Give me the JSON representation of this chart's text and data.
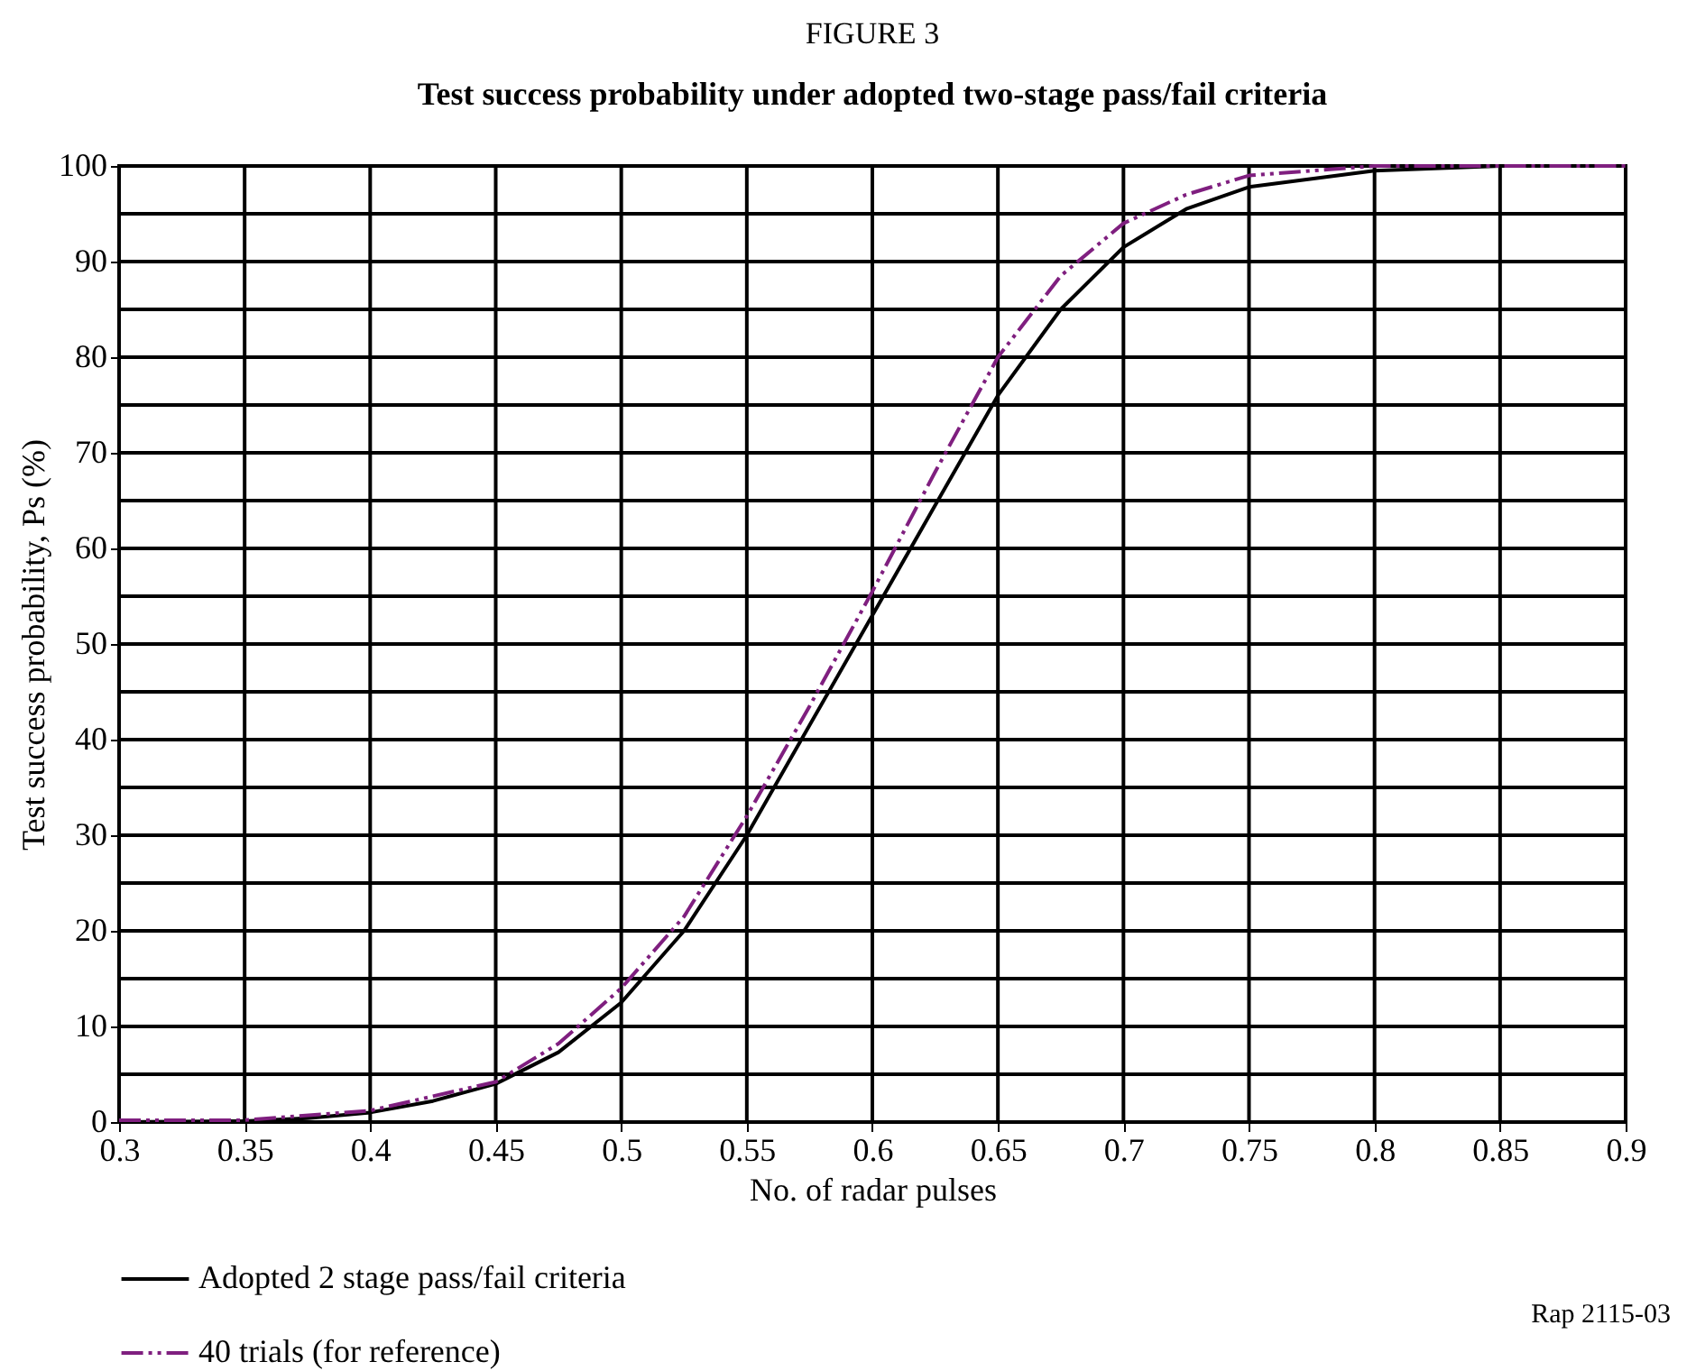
{
  "chart_data": {
    "type": "line",
    "title": "FIGURE 3",
    "subtitle": "Test success probability under adopted two-stage pass/fail criteria",
    "xlabel": "No. of radar pulses",
    "ylabel": "Test success probability, Ps (%)",
    "annotations": [
      "Rap 2115-03"
    ],
    "xlim": [
      0.3,
      0.9
    ],
    "xticks": [
      0.3,
      0.35,
      0.4,
      0.45,
      0.5,
      0.55,
      0.6,
      0.65,
      0.7,
      0.75,
      0.8,
      0.85,
      0.9
    ],
    "ylim": [
      0,
      100
    ],
    "yticks": [
      0,
      {
        "value": 5,
        "label": null
      },
      10,
      {
        "value": 15,
        "label": null
      },
      20,
      {
        "value": 25,
        "label": null
      },
      30,
      {
        "value": 35,
        "label": null
      },
      40,
      {
        "value": 45,
        "label": null
      },
      50,
      {
        "value": 55,
        "label": null
      },
      60,
      {
        "value": 65,
        "label": null
      },
      70,
      {
        "value": 75,
        "label": null
      },
      80,
      {
        "value": 85,
        "label": null
      },
      90,
      {
        "value": 95,
        "label": null
      },
      100
    ],
    "grid": true,
    "legend": "bottom left",
    "marker": "none",
    "series": [
      {
        "name": "Adopted 2 stage pass/fail criteria",
        "color": "#000000",
        "line_style": "solid",
        "x": [
          0.3,
          0.35,
          0.375,
          0.4,
          0.425,
          0.45,
          0.475,
          0.5,
          0.525,
          0.55,
          0.575,
          0.6,
          0.625,
          0.65,
          0.675,
          0.7,
          0.725,
          0.75,
          0.8,
          0.85,
          0.9
        ],
        "values": [
          0,
          0.1,
          0.4,
          1,
          2.2,
          4,
          7.3,
          12.5,
          20,
          30,
          41.5,
          53,
          64.5,
          76,
          85,
          91.5,
          95.5,
          97.8,
          99.5,
          100,
          100
        ]
      },
      {
        "name": "40 trials (for reference)",
        "color": "#7f1f7f",
        "line_style": "dashdotdot",
        "x": [
          0.3,
          0.35,
          0.4,
          0.45,
          0.475,
          0.5,
          0.525,
          0.55,
          0.575,
          0.6,
          0.625,
          0.65,
          0.675,
          0.7,
          0.725,
          0.75,
          0.8,
          0.85,
          0.9
        ],
        "values": [
          0.2,
          0.2,
          1.2,
          4.2,
          8.2,
          14,
          21.5,
          32,
          43.5,
          55.5,
          68,
          80,
          88.5,
          94,
          97,
          99,
          100,
          100,
          100
        ]
      }
    ]
  }
}
